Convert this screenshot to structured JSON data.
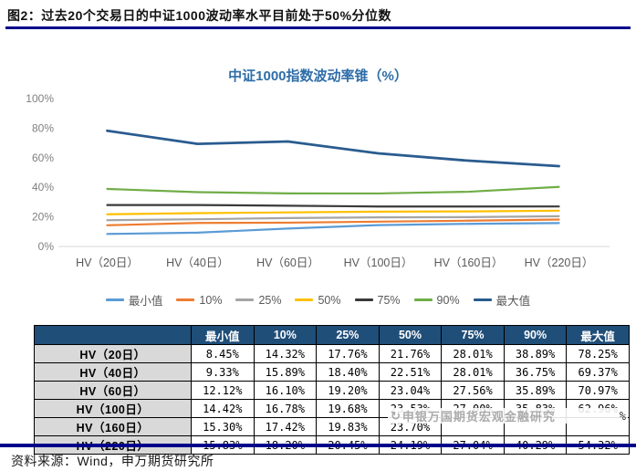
{
  "figure": {
    "title": "图2：过去20个交易日的中证1000波动率水平目前处于50%分位数"
  },
  "chart_data": {
    "type": "line",
    "title": "中证1000指数波动率锥（%）",
    "categories": [
      "HV（20日）",
      "HV（40日）",
      "HV（60日）",
      "HV（100日）",
      "HV（160日）",
      "HV（220日）"
    ],
    "series": [
      {
        "name": "最小值",
        "color": "#5B9BD5",
        "values": [
          8.45,
          9.33,
          12.12,
          14.42,
          15.3,
          15.83
        ]
      },
      {
        "name": "10%",
        "color": "#ED7D31",
        "values": [
          14.32,
          15.89,
          16.1,
          16.78,
          17.42,
          18.2
        ]
      },
      {
        "name": "25%",
        "color": "#A5A5A5",
        "values": [
          17.76,
          18.4,
          19.2,
          19.68,
          19.83,
          20.45
        ]
      },
      {
        "name": "50%",
        "color": "#FFC000",
        "values": [
          21.76,
          22.51,
          23.04,
          23.53,
          23.7,
          24.19
        ]
      },
      {
        "name": "75%",
        "color": "#3A3A3A",
        "values": [
          28.01,
          28.01,
          27.56,
          27.0,
          27.0,
          27.04
        ]
      },
      {
        "name": "90%",
        "color": "#70AD47",
        "values": [
          38.89,
          36.75,
          35.89,
          35.83,
          37.0,
          40.29
        ]
      },
      {
        "name": "最大值",
        "color": "#2A5C8F",
        "values": [
          78.25,
          69.37,
          70.97,
          62.96,
          58.0,
          54.32
        ]
      }
    ],
    "ylim": [
      0,
      100
    ],
    "yticks": [
      "0%",
      "20%",
      "40%",
      "60%",
      "80%",
      "100%"
    ],
    "legend_position": "bottom",
    "grid": false
  },
  "table": {
    "header": [
      "",
      "最小值",
      "10%",
      "25%",
      "50%",
      "75%",
      "90%",
      "最大值"
    ],
    "rows": [
      {
        "label": "HV（20日）",
        "values": [
          "8.45%",
          "14.32%",
          "17.76%",
          "21.76%",
          "28.01%",
          "38.89%",
          "78.25%"
        ]
      },
      {
        "label": "HV（40日）",
        "values": [
          "9.33%",
          "15.89%",
          "18.40%",
          "22.51%",
          "28.01%",
          "36.75%",
          "69.37%"
        ]
      },
      {
        "label": "HV（60日）",
        "values": [
          "12.12%",
          "16.10%",
          "19.20%",
          "23.04%",
          "27.56%",
          "35.89%",
          "70.97%"
        ]
      },
      {
        "label": "HV（100日）",
        "values": [
          "14.42%",
          "16.78%",
          "19.68%",
          "23.53%",
          "27.00%",
          "35.83%",
          "62.96%"
        ]
      },
      {
        "label": "HV（160日）",
        "values": [
          "15.30%",
          "17.42%",
          "19.83%",
          "23.70%",
          "",
          "",
          ""
        ]
      },
      {
        "label": "HV（220日）",
        "values": [
          "15.83%",
          "18.20%",
          "20.45%",
          "24.19%",
          "27.04%",
          "40.29%",
          "54.32%"
        ]
      }
    ]
  },
  "watermark": {
    "icon": "circular-swirl-logo",
    "logo_glyph": "↻",
    "text": "申银万国期货宏观金融研究",
    "suffix": "%"
  },
  "source": {
    "text": "资料来源：Wind，申万期货研究所"
  },
  "colors": {
    "header_navy": "#1F4E79",
    "rule_navy": "#00008B",
    "chart_title_blue": "#2E6DA8",
    "row_label_bg": "#D9D9D9",
    "axis_label_gray": "#808080"
  }
}
